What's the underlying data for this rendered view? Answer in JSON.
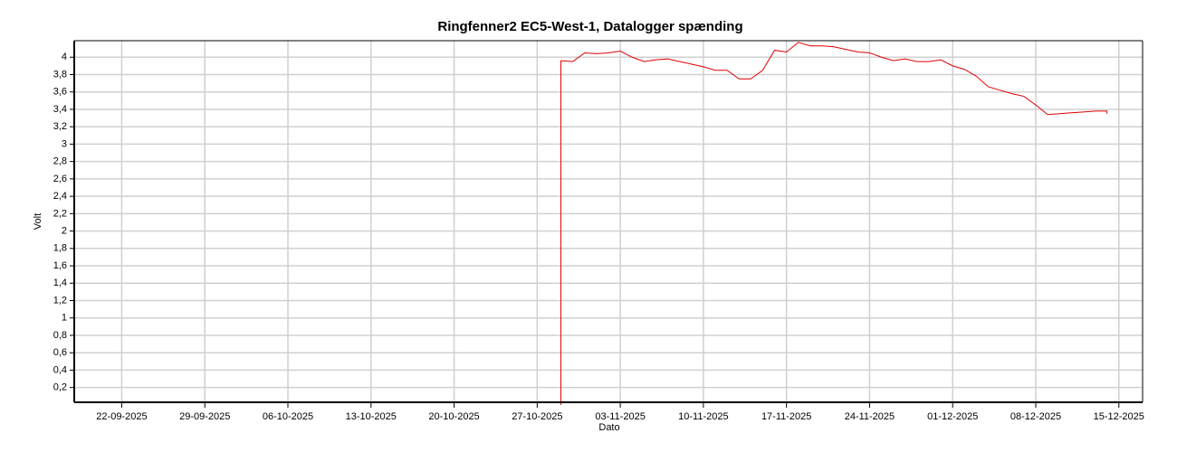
{
  "chart_data": {
    "type": "line",
    "title": "Ringfenner2 EC5-West-1, Datalogger spænding",
    "x_label": "Dato",
    "y_label": "Volt",
    "color": "#e00000",
    "grid": true,
    "xlim": [
      "2025-09-18",
      "2025-12-17"
    ],
    "xticks": [
      {
        "value": "2025-09-22",
        "label": "22-09-2025"
      },
      {
        "value": "2025-09-29",
        "label": "29-09-2025"
      },
      {
        "value": "2025-10-06",
        "label": "06-10-2025"
      },
      {
        "value": "2025-10-13",
        "label": "13-10-2025"
      },
      {
        "value": "2025-10-20",
        "label": "20-10-2025"
      },
      {
        "value": "2025-10-27",
        "label": "27-10-2025"
      },
      {
        "value": "2025-11-03",
        "label": "03-11-2025"
      },
      {
        "value": "2025-11-10",
        "label": "10-11-2025"
      },
      {
        "value": "2025-11-17",
        "label": "17-11-2025"
      },
      {
        "value": "2025-11-24",
        "label": "24-11-2025"
      },
      {
        "value": "2025-12-01",
        "label": "01-12-2025"
      },
      {
        "value": "2025-12-08",
        "label": "08-12-2025"
      },
      {
        "value": "2025-12-15",
        "label": "15-12-2025"
      }
    ],
    "ylim": [
      0.03,
      4.19
    ],
    "yticks": [
      {
        "value": 0.2,
        "label": "0,2"
      },
      {
        "value": 0.4,
        "label": "0,4"
      },
      {
        "value": 0.6,
        "label": "0,6"
      },
      {
        "value": 0.8,
        "label": "0,8"
      },
      1,
      {
        "value": 1.2,
        "label": "1,2"
      },
      {
        "value": 1.4,
        "label": "1,4"
      },
      {
        "value": 1.6,
        "label": "1,6"
      },
      {
        "value": 1.8,
        "label": "1,8"
      },
      2,
      {
        "value": 2.2,
        "label": "2,2"
      },
      {
        "value": 2.4,
        "label": "2,4"
      },
      {
        "value": 2.6,
        "label": "2,6"
      },
      {
        "value": 2.8,
        "label": "2,8"
      },
      3,
      {
        "value": 3.2,
        "label": "3,2"
      },
      {
        "value": 3.4,
        "label": "3,4"
      },
      {
        "value": 3.6,
        "label": "3,6"
      },
      {
        "value": 3.8,
        "label": "3,8"
      },
      4
    ],
    "x": [
      "2025-10-29",
      "2025-10-29",
      "2025-10-30",
      "2025-10-31",
      "2025-11-01",
      "2025-11-02",
      "2025-11-03",
      "2025-11-04",
      "2025-11-05",
      "2025-11-06",
      "2025-11-07",
      "2025-11-08",
      "2025-11-09",
      "2025-11-10",
      "2025-11-11",
      "2025-11-12",
      "2025-11-13",
      "2025-11-14",
      "2025-11-15",
      "2025-11-16",
      "2025-11-17",
      "2025-11-18",
      "2025-11-19",
      "2025-11-20",
      "2025-11-21",
      "2025-11-22",
      "2025-11-23",
      "2025-11-24",
      "2025-11-25",
      "2025-11-26",
      "2025-11-27",
      "2025-11-28",
      "2025-11-29",
      "2025-11-30",
      "2025-12-01",
      "2025-12-02",
      "2025-12-03",
      "2025-12-04",
      "2025-12-05",
      "2025-12-06",
      "2025-12-07",
      "2025-12-08",
      "2025-12-09",
      "2025-12-10",
      "2025-12-11",
      "2025-12-12",
      "2025-12-13",
      "2025-12-14",
      "2025-12-14"
    ],
    "values": [
      0,
      3.96,
      3.95,
      4.05,
      4.04,
      4.05,
      4.07,
      4.0,
      3.95,
      3.97,
      3.98,
      3.95,
      3.92,
      3.89,
      3.85,
      3.85,
      3.75,
      3.75,
      3.85,
      4.08,
      4.06,
      4.17,
      4.13,
      4.13,
      4.12,
      4.09,
      4.06,
      4.05,
      4.0,
      3.96,
      3.98,
      3.95,
      3.95,
      3.97,
      3.9,
      3.86,
      3.78,
      3.66,
      3.62,
      3.58,
      3.55,
      3.45,
      3.34,
      3.35,
      3.36,
      3.37,
      3.38,
      3.38,
      3.35
    ]
  }
}
